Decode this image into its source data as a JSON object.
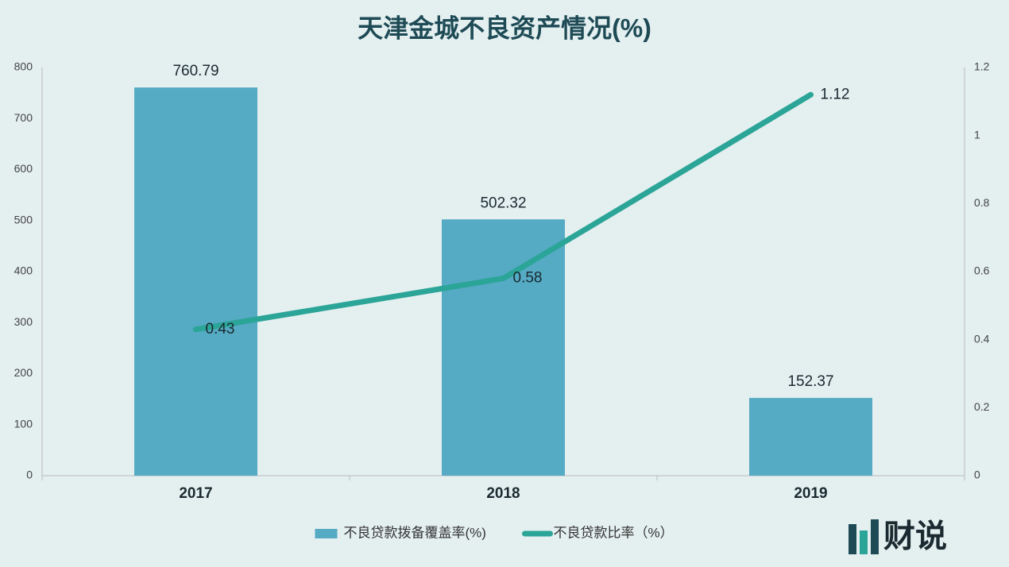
{
  "chart_data": {
    "type": "bar-line",
    "title": "天津金城不良资产情况(%)",
    "categories": [
      "2017",
      "2018",
      "2019"
    ],
    "series": [
      {
        "name": "不良贷款拨备覆盖率(%)",
        "type": "bar",
        "color": "#55aac4",
        "values": [
          760.79,
          502.32,
          152.37
        ]
      },
      {
        "name": "不良贷款比率（%）",
        "type": "line",
        "axis": "y2",
        "color": "#2ba597",
        "values": [
          0.43,
          0.58,
          1.12
        ]
      }
    ],
    "ylim": [
      0,
      800
    ],
    "yticks": [
      0,
      100,
      200,
      300,
      400,
      500,
      600,
      700,
      800
    ],
    "y2lim": [
      0,
      1.2
    ],
    "y2ticks": [
      0,
      0.2,
      0.4,
      0.6,
      0.8,
      1,
      1.2
    ],
    "legend": "bottom"
  },
  "logo": "财说"
}
